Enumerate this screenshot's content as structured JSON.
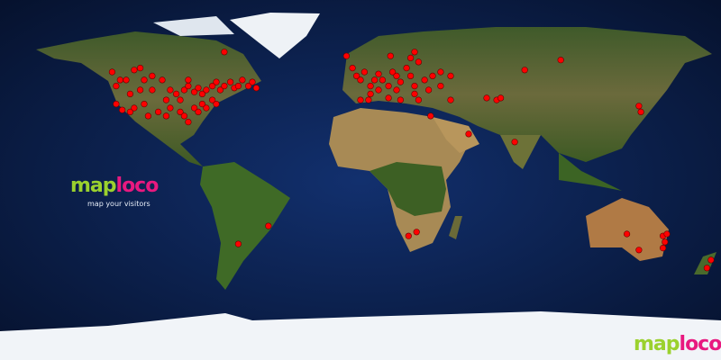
{
  "map": {
    "projection": "equirectangular",
    "ocean_color": "#0a1a44",
    "marker_color": "#ff0000",
    "visitor_locations": [
      [
        -124,
        54
      ],
      [
        -120,
        50
      ],
      [
        -122,
        47
      ],
      [
        -117,
        50
      ],
      [
        -113,
        55
      ],
      [
        -110,
        56
      ],
      [
        -108,
        50
      ],
      [
        -104,
        52
      ],
      [
        -99,
        50
      ],
      [
        -95,
        45
      ],
      [
        -92,
        43
      ],
      [
        -88,
        45
      ],
      [
        -86,
        47
      ],
      [
        -83,
        44
      ],
      [
        -81,
        46
      ],
      [
        -79,
        43
      ],
      [
        -77,
        45
      ],
      [
        -74,
        47
      ],
      [
        -72,
        49
      ],
      [
        -70,
        45
      ],
      [
        -68,
        47
      ],
      [
        -65,
        49
      ],
      [
        -63,
        46
      ],
      [
        -61,
        47
      ],
      [
        -59,
        50
      ],
      [
        -56,
        47
      ],
      [
        -54,
        49
      ],
      [
        -52,
        46
      ],
      [
        -68,
        64
      ],
      [
        -122,
        38
      ],
      [
        -119,
        35
      ],
      [
        -115,
        34
      ],
      [
        -113,
        36
      ],
      [
        -108,
        38
      ],
      [
        -106,
        32
      ],
      [
        -101,
        34
      ],
      [
        -97,
        32
      ],
      [
        -95,
        36
      ],
      [
        -90,
        34
      ],
      [
        -88,
        32
      ],
      [
        -86,
        29
      ],
      [
        -83,
        36
      ],
      [
        -81,
        34
      ],
      [
        -79,
        38
      ],
      [
        -77,
        36
      ],
      [
        -74,
        40
      ],
      [
        -72,
        38
      ],
      [
        -90,
        40
      ],
      [
        -97,
        40
      ],
      [
        -104,
        45
      ],
      [
        -115,
        43
      ],
      [
        -110,
        45
      ],
      [
        -86,
        50
      ],
      [
        -46,
        -23
      ],
      [
        -61,
        -32
      ],
      [
        -7,
        62
      ],
      [
        -4,
        56
      ],
      [
        -2,
        52
      ],
      [
        0,
        50
      ],
      [
        2,
        54
      ],
      [
        5,
        47
      ],
      [
        7,
        50
      ],
      [
        9,
        53
      ],
      [
        11,
        50
      ],
      [
        14,
        47
      ],
      [
        16,
        54
      ],
      [
        18,
        52
      ],
      [
        20,
        49
      ],
      [
        23,
        56
      ],
      [
        25,
        61
      ],
      [
        27,
        64
      ],
      [
        29,
        59
      ],
      [
        25,
        52
      ],
      [
        27,
        47
      ],
      [
        32,
        50
      ],
      [
        34,
        45
      ],
      [
        36,
        52
      ],
      [
        40,
        54
      ],
      [
        45,
        52
      ],
      [
        40,
        47
      ],
      [
        5,
        43
      ],
      [
        9,
        45
      ],
      [
        14,
        41
      ],
      [
        18,
        45
      ],
      [
        20,
        40
      ],
      [
        27,
        43
      ],
      [
        29,
        40
      ],
      [
        35,
        32
      ],
      [
        15,
        62
      ],
      [
        0,
        40
      ],
      [
        4,
        40
      ],
      [
        63,
        41
      ],
      [
        68,
        40
      ],
      [
        70,
        41
      ],
      [
        82,
        55
      ],
      [
        100,
        60
      ],
      [
        54,
        23
      ],
      [
        77,
        19
      ],
      [
        139,
        37
      ],
      [
        140,
        34
      ],
      [
        45,
        40
      ],
      [
        28,
        -26
      ],
      [
        24,
        -28
      ],
      [
        133,
        -27
      ],
      [
        139,
        -35
      ],
      [
        151,
        -28
      ],
      [
        153,
        -27
      ],
      [
        152,
        -31
      ],
      [
        151,
        -34
      ],
      [
        175,
        -40
      ],
      [
        173,
        -44
      ]
    ]
  },
  "branding": {
    "logo_map": "map",
    "logo_loco": "loco",
    "tagline": "map your visitors",
    "corner_logo_map": "map",
    "corner_logo_loco": "loco",
    "logo_green": "#9bd12e",
    "logo_pink": "#e8197f"
  }
}
